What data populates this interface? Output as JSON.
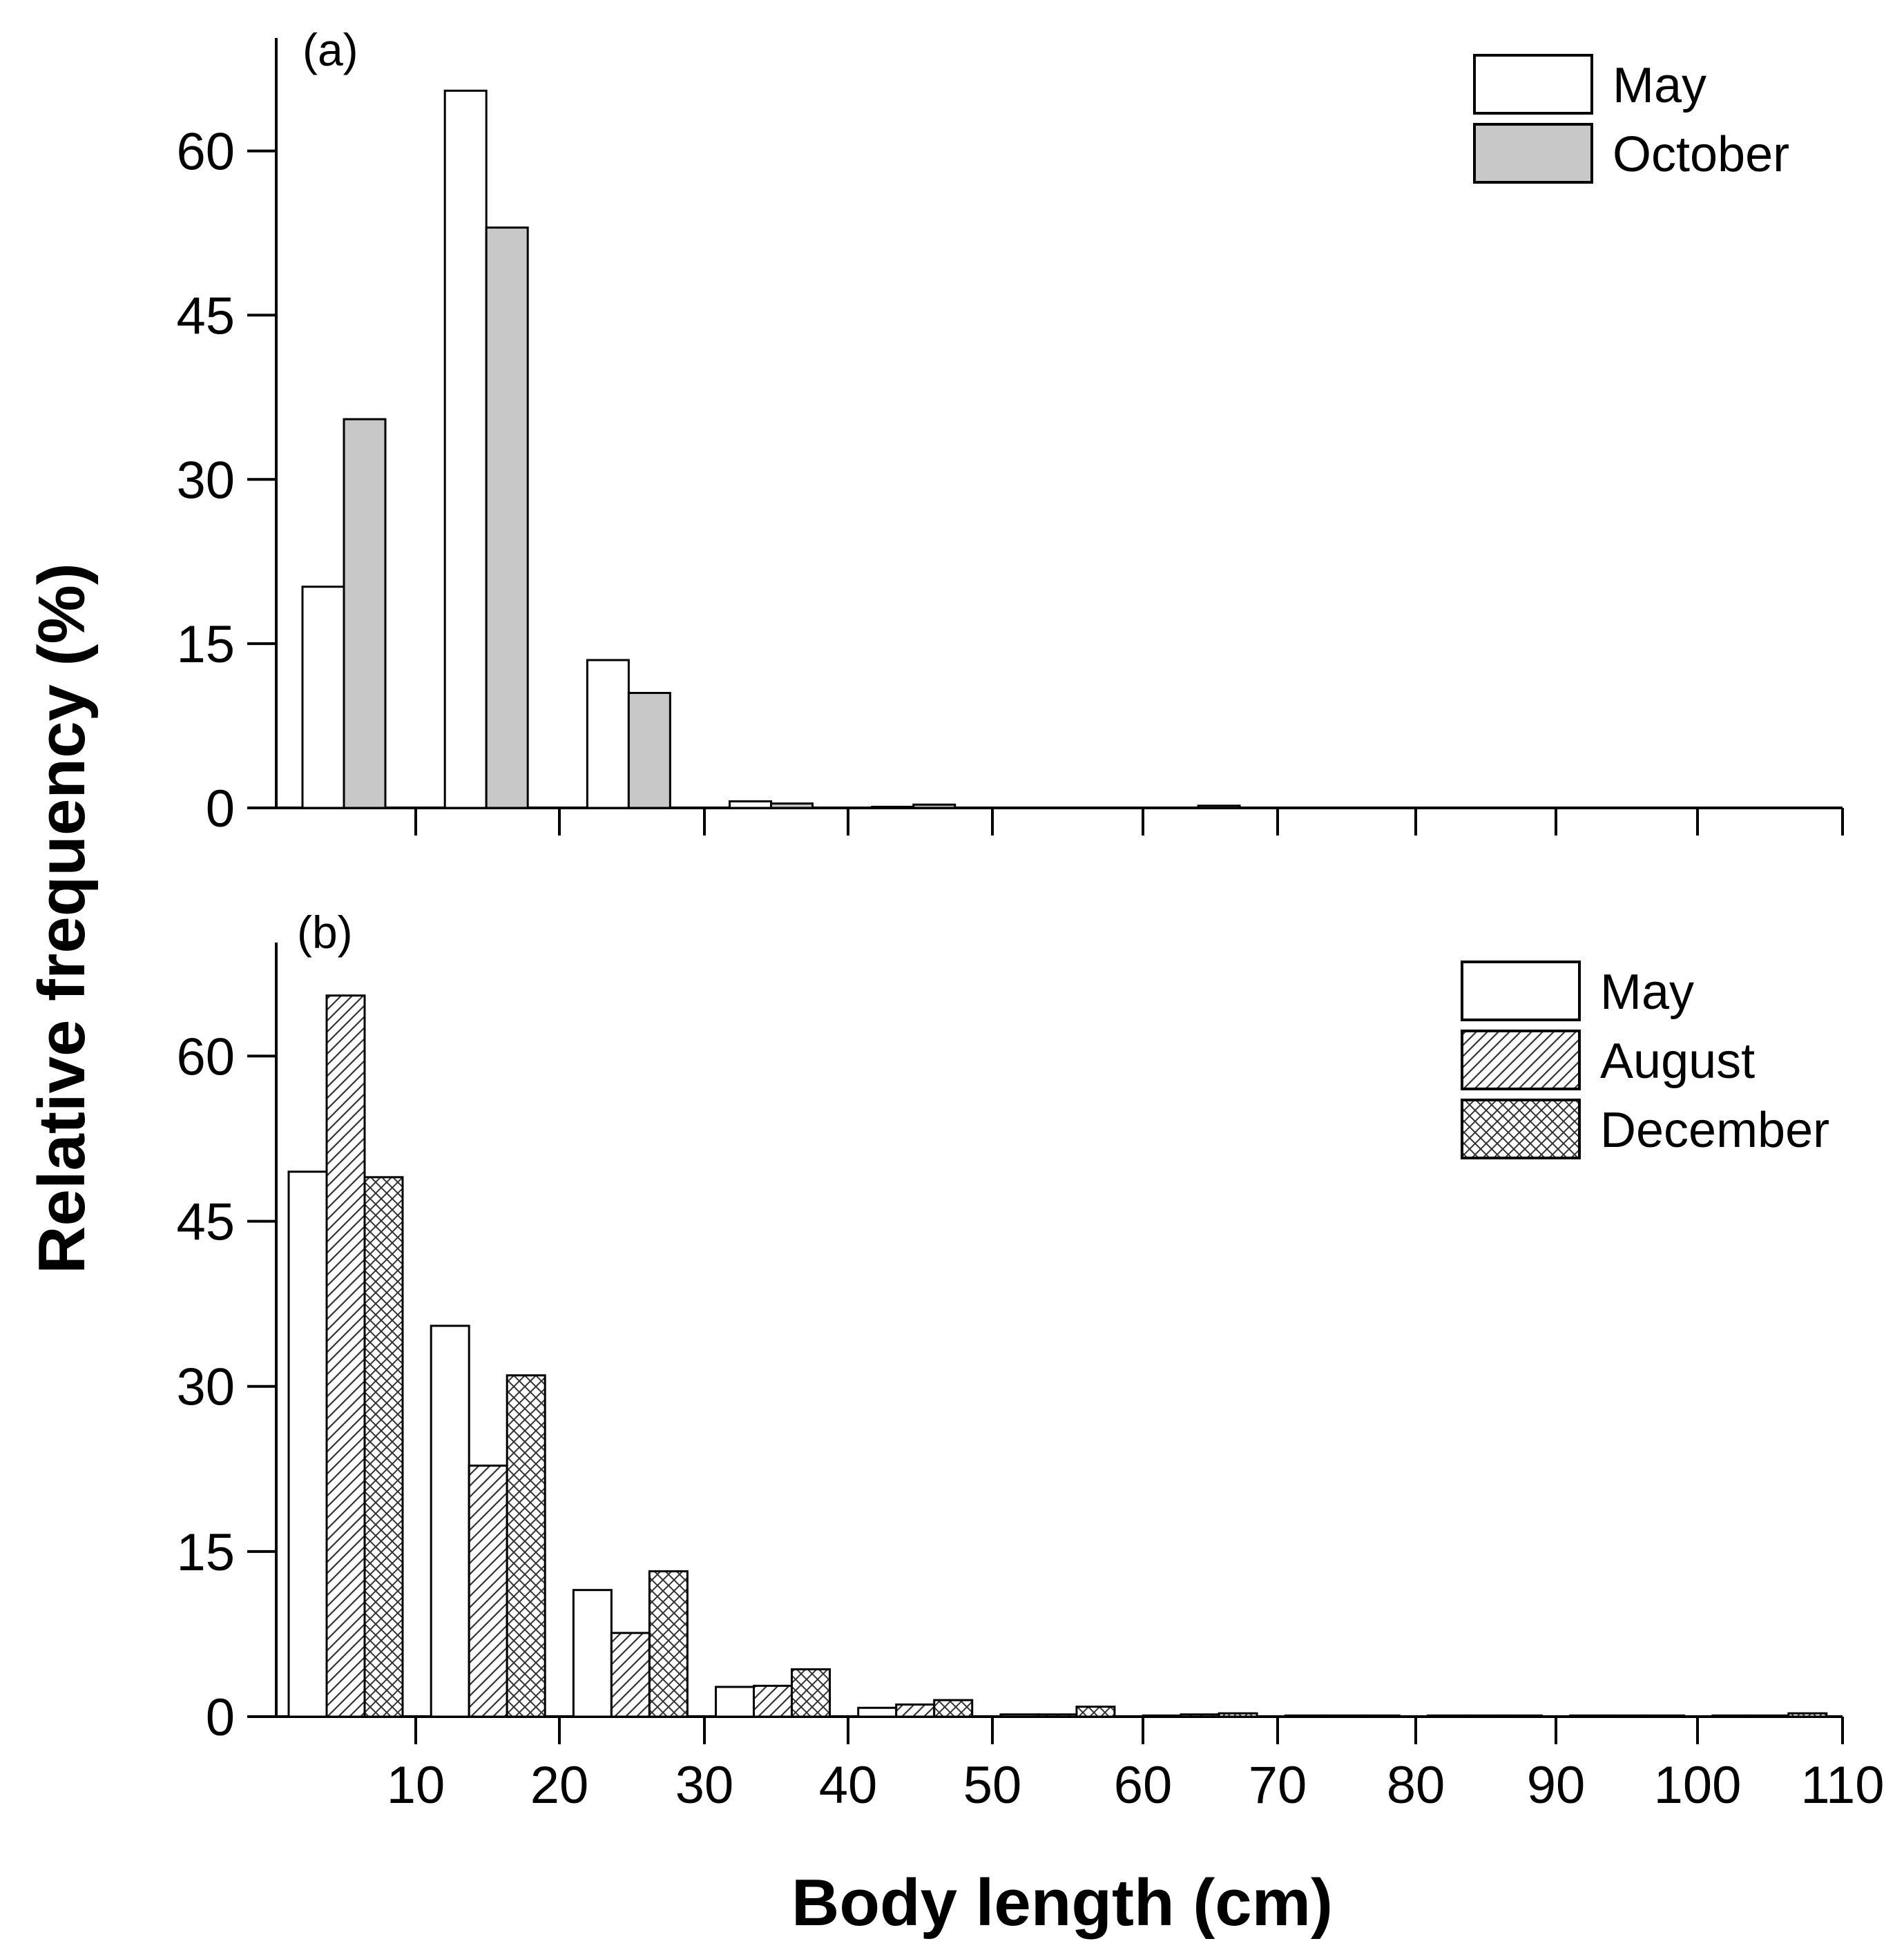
{
  "chart_data": [
    {
      "type": "bar",
      "panel_label": "(a)",
      "title": "",
      "xlabel": "",
      "ylabel": "Relative frequency (%)",
      "ylim": [
        0,
        70
      ],
      "yticks": [
        0,
        15,
        30,
        45,
        60
      ],
      "ytick_labels": [
        "0",
        "15",
        "30",
        "45",
        "60"
      ],
      "categories": [
        "0-10",
        "10-20",
        "20-30",
        "30-40",
        "40-50",
        "50-60",
        "60-70",
        "70-80",
        "80-90",
        "90-100",
        "100-110"
      ],
      "series": [
        {
          "name": "May",
          "fill": "#ffffff",
          "pattern": "none",
          "values": [
            20.2,
            65.5,
            13.5,
            0.6,
            0.1,
            0,
            0,
            0,
            0,
            0,
            0
          ]
        },
        {
          "name": "October",
          "fill": "#c8c8c8",
          "pattern": "none",
          "values": [
            35.5,
            53.0,
            10.5,
            0.4,
            0.3,
            0,
            0.2,
            0,
            0,
            0,
            0
          ]
        }
      ],
      "legend": {
        "placement": "top-right",
        "entries": [
          "May",
          "October"
        ]
      }
    },
    {
      "type": "bar",
      "panel_label": "(b)",
      "title": "",
      "xlabel": "Body length (cm)",
      "ylabel": "Relative frequency (%)",
      "ylim": [
        0,
        70
      ],
      "yticks": [
        0,
        15,
        30,
        45,
        60
      ],
      "ytick_labels": [
        "0",
        "15",
        "30",
        "45",
        "60"
      ],
      "xlim": [
        0,
        110
      ],
      "xticks": [
        10,
        20,
        30,
        40,
        50,
        60,
        70,
        80,
        90,
        100,
        110
      ],
      "xtick_labels": [
        "10",
        "20",
        "30",
        "40",
        "50",
        "60",
        "70",
        "80",
        "90",
        "100",
        "110"
      ],
      "categories": [
        "0-10",
        "10-20",
        "20-30",
        "30-40",
        "40-50",
        "50-60",
        "60-70",
        "70-80",
        "80-90",
        "90-100",
        "100-110"
      ],
      "series": [
        {
          "name": "May",
          "fill": "#ffffff",
          "pattern": "none",
          "values": [
            49.5,
            35.5,
            11.5,
            2.7,
            0.8,
            0.2,
            0.1,
            0.1,
            0.1,
            0.1,
            0.1
          ]
        },
        {
          "name": "August",
          "fill": "#ffffff",
          "pattern": "diagonal",
          "values": [
            65.5,
            22.8,
            7.6,
            2.8,
            1.1,
            0.2,
            0.2,
            0.1,
            0.1,
            0.1,
            0.1
          ]
        },
        {
          "name": "December",
          "fill": "#ffffff",
          "pattern": "crosshatch",
          "values": [
            49.0,
            31.0,
            13.2,
            4.3,
            1.5,
            0.9,
            0.3,
            0.1,
            0.1,
            0.1,
            0.3
          ]
        }
      ],
      "legend": {
        "placement": "top-right",
        "entries": [
          "May",
          "August",
          "December"
        ]
      }
    }
  ]
}
